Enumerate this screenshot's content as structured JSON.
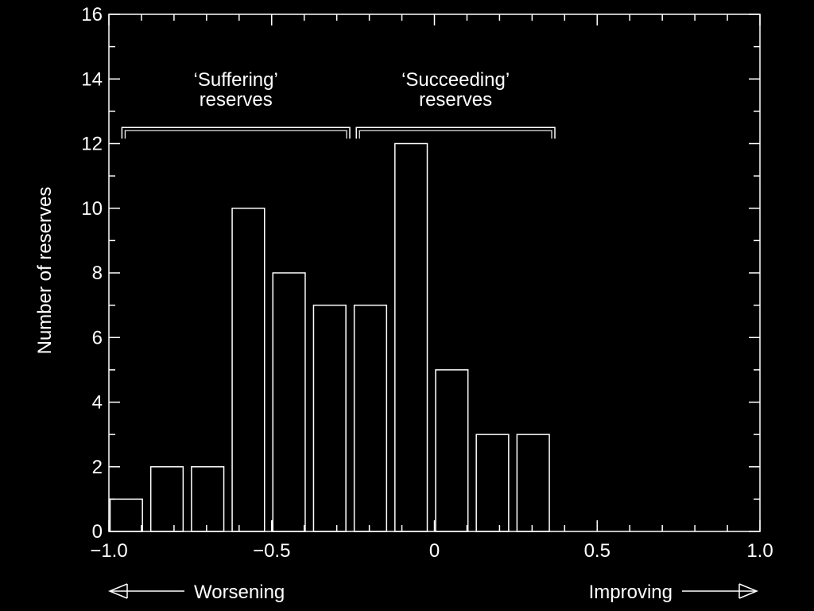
{
  "chart_data": {
    "type": "bar",
    "xlabel": "",
    "ylabel": "Number of reserves",
    "xlim": [
      -1.0,
      1.0
    ],
    "ylim": [
      0,
      16
    ],
    "x_ticks": [
      {
        "value": -1.0,
        "label": "−1.0"
      },
      {
        "value": -0.5,
        "label": "−0.5"
      },
      {
        "value": 0,
        "label": "0"
      },
      {
        "value": 0.5,
        "label": "0.5"
      },
      {
        "value": 1.0,
        "label": "1.0"
      }
    ],
    "y_ticks": [
      {
        "value": 0,
        "label": "0"
      },
      {
        "value": 2,
        "label": "2"
      },
      {
        "value": 4,
        "label": "4"
      },
      {
        "value": 6,
        "label": "6"
      },
      {
        "value": 8,
        "label": "8"
      },
      {
        "value": 10,
        "label": "10"
      },
      {
        "value": 12,
        "label": "12"
      },
      {
        "value": 14,
        "label": "14"
      },
      {
        "value": 16,
        "label": "16"
      }
    ],
    "bins": [
      {
        "x0": -1.0,
        "x1": -0.875,
        "value": 1
      },
      {
        "x0": -0.875,
        "x1": -0.75,
        "value": 2
      },
      {
        "x0": -0.75,
        "x1": -0.625,
        "value": 2
      },
      {
        "x0": -0.625,
        "x1": -0.5,
        "value": 10
      },
      {
        "x0": -0.5,
        "x1": -0.375,
        "value": 8
      },
      {
        "x0": -0.375,
        "x1": -0.25,
        "value": 7
      },
      {
        "x0": -0.25,
        "x1": -0.125,
        "value": 7
      },
      {
        "x0": -0.125,
        "x1": 0.0,
        "value": 12
      },
      {
        "x0": 0.0,
        "x1": 0.125,
        "value": 5
      },
      {
        "x0": 0.125,
        "x1": 0.25,
        "value": 3
      },
      {
        "x0": 0.25,
        "x1": 0.375,
        "value": 3
      },
      {
        "x0": 0.375,
        "x1": 0.5,
        "value": 0
      },
      {
        "x0": 0.5,
        "x1": 0.625,
        "value": 0
      },
      {
        "x0": 0.625,
        "x1": 0.75,
        "value": 0
      },
      {
        "x0": 0.75,
        "x1": 0.875,
        "value": 0
      },
      {
        "x0": 0.875,
        "x1": 1.0,
        "value": 0
      }
    ],
    "groups": [
      {
        "label_line1": "‘Suffering’",
        "label_line2": "reserves",
        "x_start": -0.96,
        "x_end": -0.26
      },
      {
        "label_line1": "‘Succeeding’",
        "label_line2": "reserves",
        "x_start": -0.24,
        "x_end": 0.37
      }
    ],
    "direction_labels": {
      "left": "Worsening",
      "right": "Improving"
    },
    "grid": false,
    "colors": {
      "background": "#000000",
      "foreground": "#ffffff"
    }
  }
}
